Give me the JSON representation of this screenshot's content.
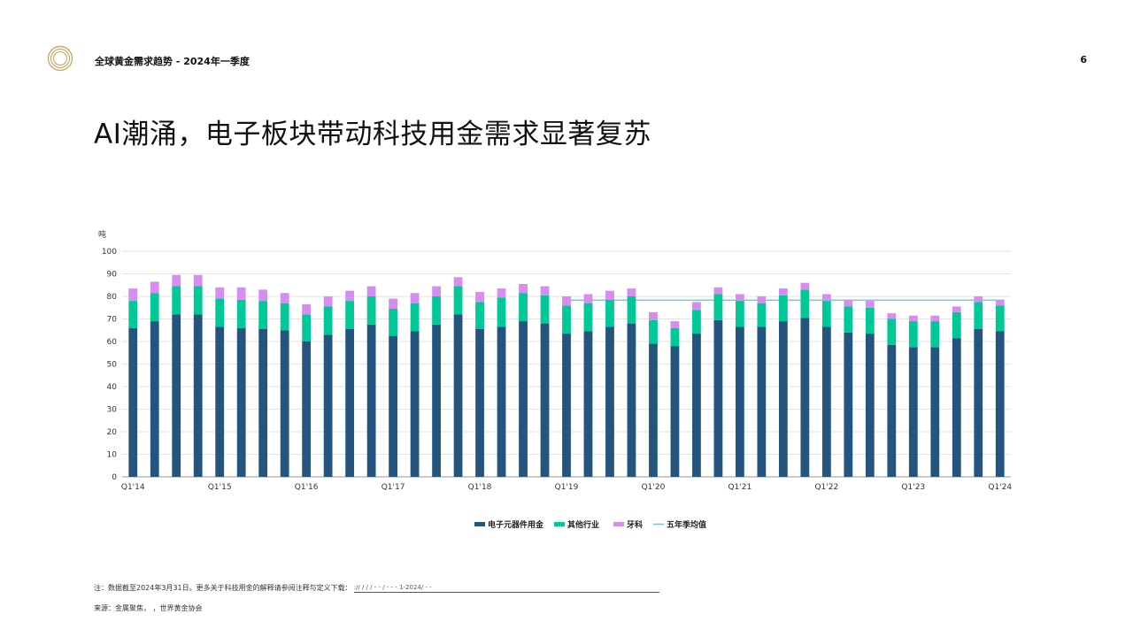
{
  "header": {
    "title": "全球黄金需求趋势 - 2024年一季度",
    "page_number": "6",
    "logo_icon": "concentric-rings-logo",
    "logo_color": "#c9a86a"
  },
  "slide_title": "AI潮涌，电子板块带动科技用金需求显著复苏",
  "chart_data": {
    "type": "bar",
    "stacked": true,
    "ylabel": "吨",
    "ylim": [
      0,
      100
    ],
    "yticks": [
      0,
      10,
      20,
      30,
      40,
      50,
      60,
      70,
      80,
      90,
      100
    ],
    "grid": true,
    "legend_position": "bottom",
    "categories": [
      "Q1'14",
      "Q2'14",
      "Q3'14",
      "Q4'14",
      "Q1'15",
      "Q2'15",
      "Q3'15",
      "Q4'15",
      "Q1'16",
      "Q2'16",
      "Q3'16",
      "Q4'16",
      "Q1'17",
      "Q2'17",
      "Q3'17",
      "Q4'17",
      "Q1'18",
      "Q2'18",
      "Q3'18",
      "Q4'18",
      "Q1'19",
      "Q2'19",
      "Q3'19",
      "Q4'19",
      "Q1'20",
      "Q2'20",
      "Q3'20",
      "Q4'20",
      "Q1'21",
      "Q2'21",
      "Q3'21",
      "Q4'21",
      "Q1'22",
      "Q2'22",
      "Q3'22",
      "Q4'22",
      "Q1'23",
      "Q2'23",
      "Q3'23",
      "Q4'23",
      "Q1'24"
    ],
    "xtick_labels": [
      "Q1'14",
      "",
      "",
      "",
      "Q1'15",
      "",
      "",
      "",
      "Q1'16",
      "",
      "",
      "",
      "Q1'17",
      "",
      "",
      "",
      "Q1'18",
      "",
      "",
      "",
      "Q1'19",
      "",
      "",
      "",
      "Q1'20",
      "",
      "",
      "",
      "Q1'21",
      "",
      "",
      "",
      "Q1'22",
      "",
      "",
      "",
      "Q1'23",
      "",
      "",
      "",
      "Q1'24"
    ],
    "series": [
      {
        "name": "电子元器件用金",
        "color": "#24557f",
        "values": [
          66,
          69,
          72,
          72,
          66.5,
          66,
          65.5,
          65,
          60,
          63,
          65.5,
          67.5,
          62.5,
          64.5,
          67.5,
          72,
          65.5,
          66.5,
          69,
          68,
          63.5,
          64.5,
          66.5,
          68,
          59,
          58,
          63.5,
          69.5,
          66.5,
          66.5,
          69,
          70.5,
          66.5,
          64,
          63.5,
          58.5,
          57.5,
          57.5,
          61.5,
          65.5,
          64.5
        ]
      },
      {
        "name": "其他行业",
        "color": "#00c896",
        "values": [
          12,
          12.5,
          12.5,
          12.5,
          12.5,
          12.5,
          12.5,
          12,
          12,
          12.5,
          12.5,
          12.5,
          12,
          12.5,
          12.5,
          12.5,
          12,
          13,
          12.5,
          12.5,
          12.5,
          12.5,
          12,
          12,
          10.5,
          8,
          10.5,
          11.5,
          11.5,
          10.5,
          11.5,
          12.5,
          11.5,
          11.5,
          11.5,
          11.5,
          11.5,
          11.5,
          11.5,
          12,
          11.5
        ]
      },
      {
        "name": "牙科",
        "color": "#d58ef0",
        "values": [
          5.5,
          5,
          5,
          5,
          5,
          5.5,
          5,
          4.5,
          4.5,
          4.5,
          4.5,
          4.5,
          4.5,
          4.5,
          4.5,
          4,
          4.5,
          4,
          4,
          4,
          4,
          4,
          4,
          3.5,
          3.5,
          3,
          3.5,
          3,
          3,
          3,
          3,
          3,
          3,
          3,
          3,
          2.5,
          2.5,
          2.5,
          2.5,
          2.5,
          2.5
        ]
      }
    ],
    "average_line": {
      "name": "五年季均值",
      "color": "#7fc8d6",
      "from": "Q1'19",
      "to": "Q1'24",
      "value": 78.3
    }
  },
  "footnote": {
    "text": "注：数据截至2024年3月31日。更多关于科技用金的解释请参阅注释与定义下载：",
    "link_text": "    ://                /          /          /      -          -        /      -          -        -  1-2024/        -      -"
  },
  "source_text": "来源：金属聚焦，                      ，世界黄金协会"
}
